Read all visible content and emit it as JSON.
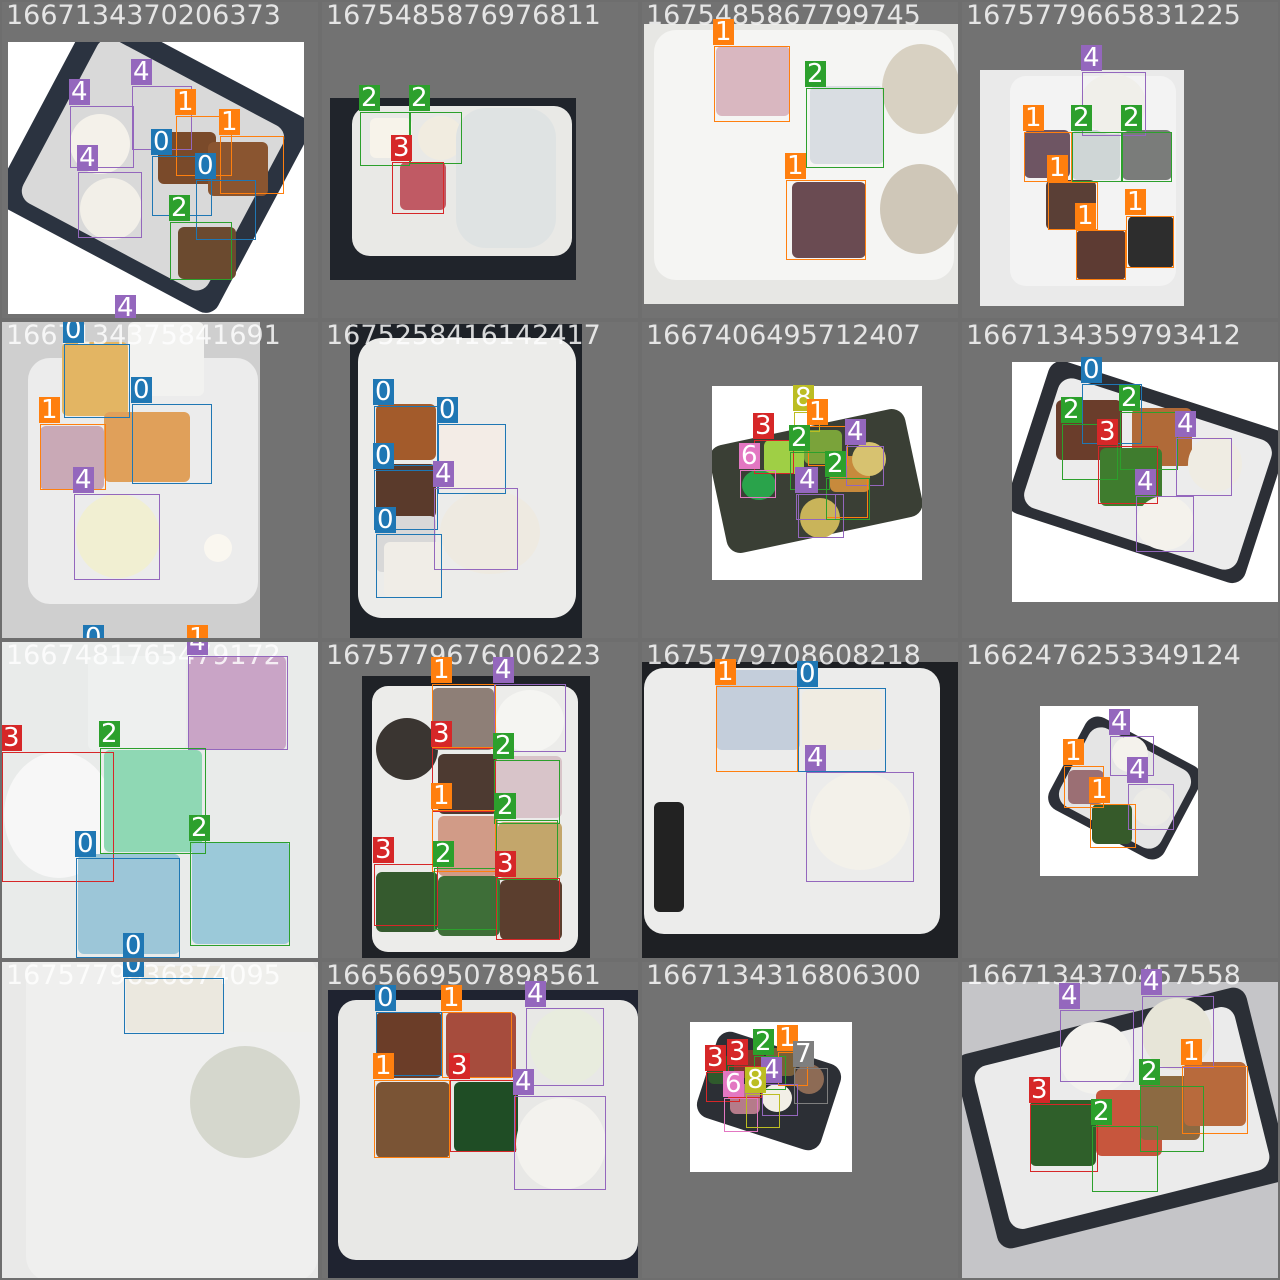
{
  "class_colors": {
    "0": "#1f77b4",
    "1": "#ff7f0e",
    "2": "#2ca02c",
    "3": "#d62728",
    "4": "#9467bd",
    "6": "#e377c2",
    "7": "#7f7f7f",
    "8": "#bcbd22"
  },
  "tiles": [
    {
      "title": "1667134370206373",
      "boxes": [
        {
          "cls": "4"
        },
        {
          "cls": "4"
        },
        {
          "cls": "1"
        },
        {
          "cls": "1"
        },
        {
          "cls": "0"
        },
        {
          "cls": "4"
        },
        {
          "cls": "0"
        },
        {
          "cls": "2"
        },
        {
          "cls": "4"
        }
      ]
    },
    {
      "title": "1675485876976811",
      "boxes": [
        {
          "cls": "2"
        },
        {
          "cls": "2"
        },
        {
          "cls": "3"
        }
      ]
    },
    {
      "title": "1675485867799745",
      "boxes": [
        {
          "cls": "1"
        },
        {
          "cls": "2"
        },
        {
          "cls": "1"
        }
      ]
    },
    {
      "title": "1675779665831225",
      "boxes": [
        {
          "cls": "4"
        },
        {
          "cls": "1"
        },
        {
          "cls": "2"
        },
        {
          "cls": "2"
        },
        {
          "cls": "1"
        },
        {
          "cls": "1"
        },
        {
          "cls": "1"
        }
      ]
    },
    {
      "title": "1667134375841691",
      "boxes": [
        {
          "cls": "0"
        },
        {
          "cls": "0"
        },
        {
          "cls": "1"
        },
        {
          "cls": "4"
        },
        {
          "cls": "0"
        },
        {
          "cls": "1"
        }
      ]
    },
    {
      "title": "1675258416142417",
      "boxes": [
        {
          "cls": "0"
        },
        {
          "cls": "0"
        },
        {
          "cls": "0"
        },
        {
          "cls": "4"
        },
        {
          "cls": "0"
        }
      ]
    },
    {
      "title": "1667406495712407",
      "boxes": [
        {
          "cls": "8"
        },
        {
          "cls": "3"
        },
        {
          "cls": "1"
        },
        {
          "cls": "2"
        },
        {
          "cls": "4"
        },
        {
          "cls": "6"
        },
        {
          "cls": "1"
        },
        {
          "cls": "4"
        },
        {
          "cls": "2"
        },
        {
          "cls": "4"
        }
      ]
    },
    {
      "title": "1667134359793412",
      "boxes": [
        {
          "cls": "0"
        },
        {
          "cls": "2"
        },
        {
          "cls": "2"
        },
        {
          "cls": "3"
        },
        {
          "cls": "4"
        },
        {
          "cls": "4"
        }
      ]
    },
    {
      "title": "1667481765479172",
      "boxes": [
        {
          "cls": "4"
        },
        {
          "cls": "3"
        },
        {
          "cls": "2"
        },
        {
          "cls": "2"
        },
        {
          "cls": "0"
        },
        {
          "cls": "0"
        }
      ]
    },
    {
      "title": "1675779676006223",
      "boxes": [
        {
          "cls": "1"
        },
        {
          "cls": "4"
        },
        {
          "cls": "3"
        },
        {
          "cls": "2"
        },
        {
          "cls": "1"
        },
        {
          "cls": "2"
        },
        {
          "cls": "3"
        },
        {
          "cls": "2"
        },
        {
          "cls": "3"
        }
      ]
    },
    {
      "title": "1675779708608218",
      "boxes": [
        {
          "cls": "1"
        },
        {
          "cls": "0"
        },
        {
          "cls": "4"
        }
      ]
    },
    {
      "title": "1662476253349124",
      "boxes": [
        {
          "cls": "4"
        },
        {
          "cls": "1"
        },
        {
          "cls": "4"
        },
        {
          "cls": "1"
        }
      ]
    },
    {
      "title": "1675779636874095",
      "boxes": [
        {
          "cls": "0"
        }
      ]
    },
    {
      "title": "1665669507898561",
      "boxes": [
        {
          "cls": "0"
        },
        {
          "cls": "1"
        },
        {
          "cls": "4"
        },
        {
          "cls": "1"
        },
        {
          "cls": "3"
        },
        {
          "cls": "4"
        }
      ]
    },
    {
      "title": "1667134316806300",
      "boxes": [
        {
          "cls": "3"
        },
        {
          "cls": "3"
        },
        {
          "cls": "2"
        },
        {
          "cls": "1"
        },
        {
          "cls": "4"
        },
        {
          "cls": "7"
        },
        {
          "cls": "6"
        },
        {
          "cls": "8"
        }
      ]
    },
    {
      "title": "1667134370457558",
      "boxes": [
        {
          "cls": "4"
        },
        {
          "cls": "4"
        },
        {
          "cls": "1"
        },
        {
          "cls": "3"
        },
        {
          "cls": "2"
        },
        {
          "cls": "2"
        }
      ]
    }
  ]
}
